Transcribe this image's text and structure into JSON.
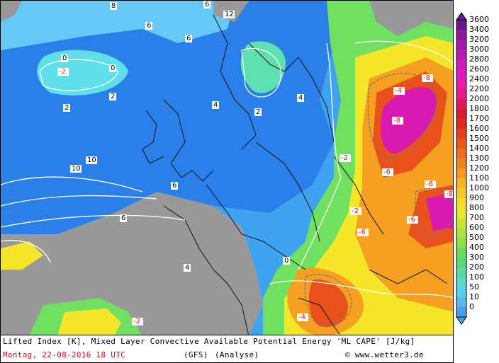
{
  "map": {
    "colors": {
      "land_gray": "#999999",
      "sea_gray": "#8f8f8f",
      "deep_blue": "#2b7fe8",
      "blue": "#3fa3f0",
      "light_blue": "#66c9f5",
      "cyan": "#5fe0e8",
      "aqua_green": "#5fe0b0",
      "green": "#6fe05f",
      "yellow_green": "#c6e03c",
      "yellow": "#f5e62a",
      "orange": "#f5a020",
      "red_orange": "#e8501c",
      "red": "#d81a1a",
      "magenta": "#d81ab0",
      "purple": "#8a1a9a",
      "contour_white": "#ffffff",
      "contour_gray": "#777777",
      "coast_black": "#111111"
    },
    "contour_labels": [
      "10",
      "10",
      "6",
      "12",
      "8",
      "6",
      "6",
      "6",
      "6",
      "4",
      "4",
      "4",
      "2",
      "2",
      "2",
      "0",
      "0",
      "0",
      "-2",
      "-2",
      "-2",
      "-2",
      "-4",
      "-4",
      "-6",
      "-6",
      "-6",
      "-6",
      "-8",
      "-8",
      "-8"
    ]
  },
  "footer": {
    "title": "Lifted Index [K], Mixed Layer Convective Available Potential Energy 'ML CAPE' [J/kg]",
    "date": "Montag, 22-08-2016  18 UTC",
    "model": "(GFS)",
    "type": "(Analyse)",
    "copyright": "© www.wetter3.de"
  },
  "legend": {
    "labels": [
      "3600",
      "3400",
      "3200",
      "3000",
      "2800",
      "2600",
      "2400",
      "2200",
      "2000",
      "1800",
      "1700",
      "1600",
      "1500",
      "1400",
      "1300",
      "1200",
      "1100",
      "1000",
      "900",
      "800",
      "700",
      "600",
      "500",
      "400",
      "300",
      "200",
      "100",
      "50",
      "10",
      "0"
    ],
    "colors": [
      "#6a1a8a",
      "#8a1a9a",
      "#a21aa6",
      "#b81ab2",
      "#cc1abc",
      "#dc1ac0",
      "#e81aa8",
      "#e81a88",
      "#e01a60",
      "#dc1a30",
      "#e02a1a",
      "#e8401a",
      "#ec561c",
      "#f06c1e",
      "#f28420",
      "#f49a22",
      "#f6b224",
      "#f8c826",
      "#f6dc2a",
      "#e8e62e",
      "#cce634",
      "#aee23e",
      "#8ee048",
      "#6edc56",
      "#5ad878",
      "#5ad8a0",
      "#5ad8c8",
      "#5ad0e8",
      "#5ab8f0",
      "#4aa0ec"
    ]
  }
}
